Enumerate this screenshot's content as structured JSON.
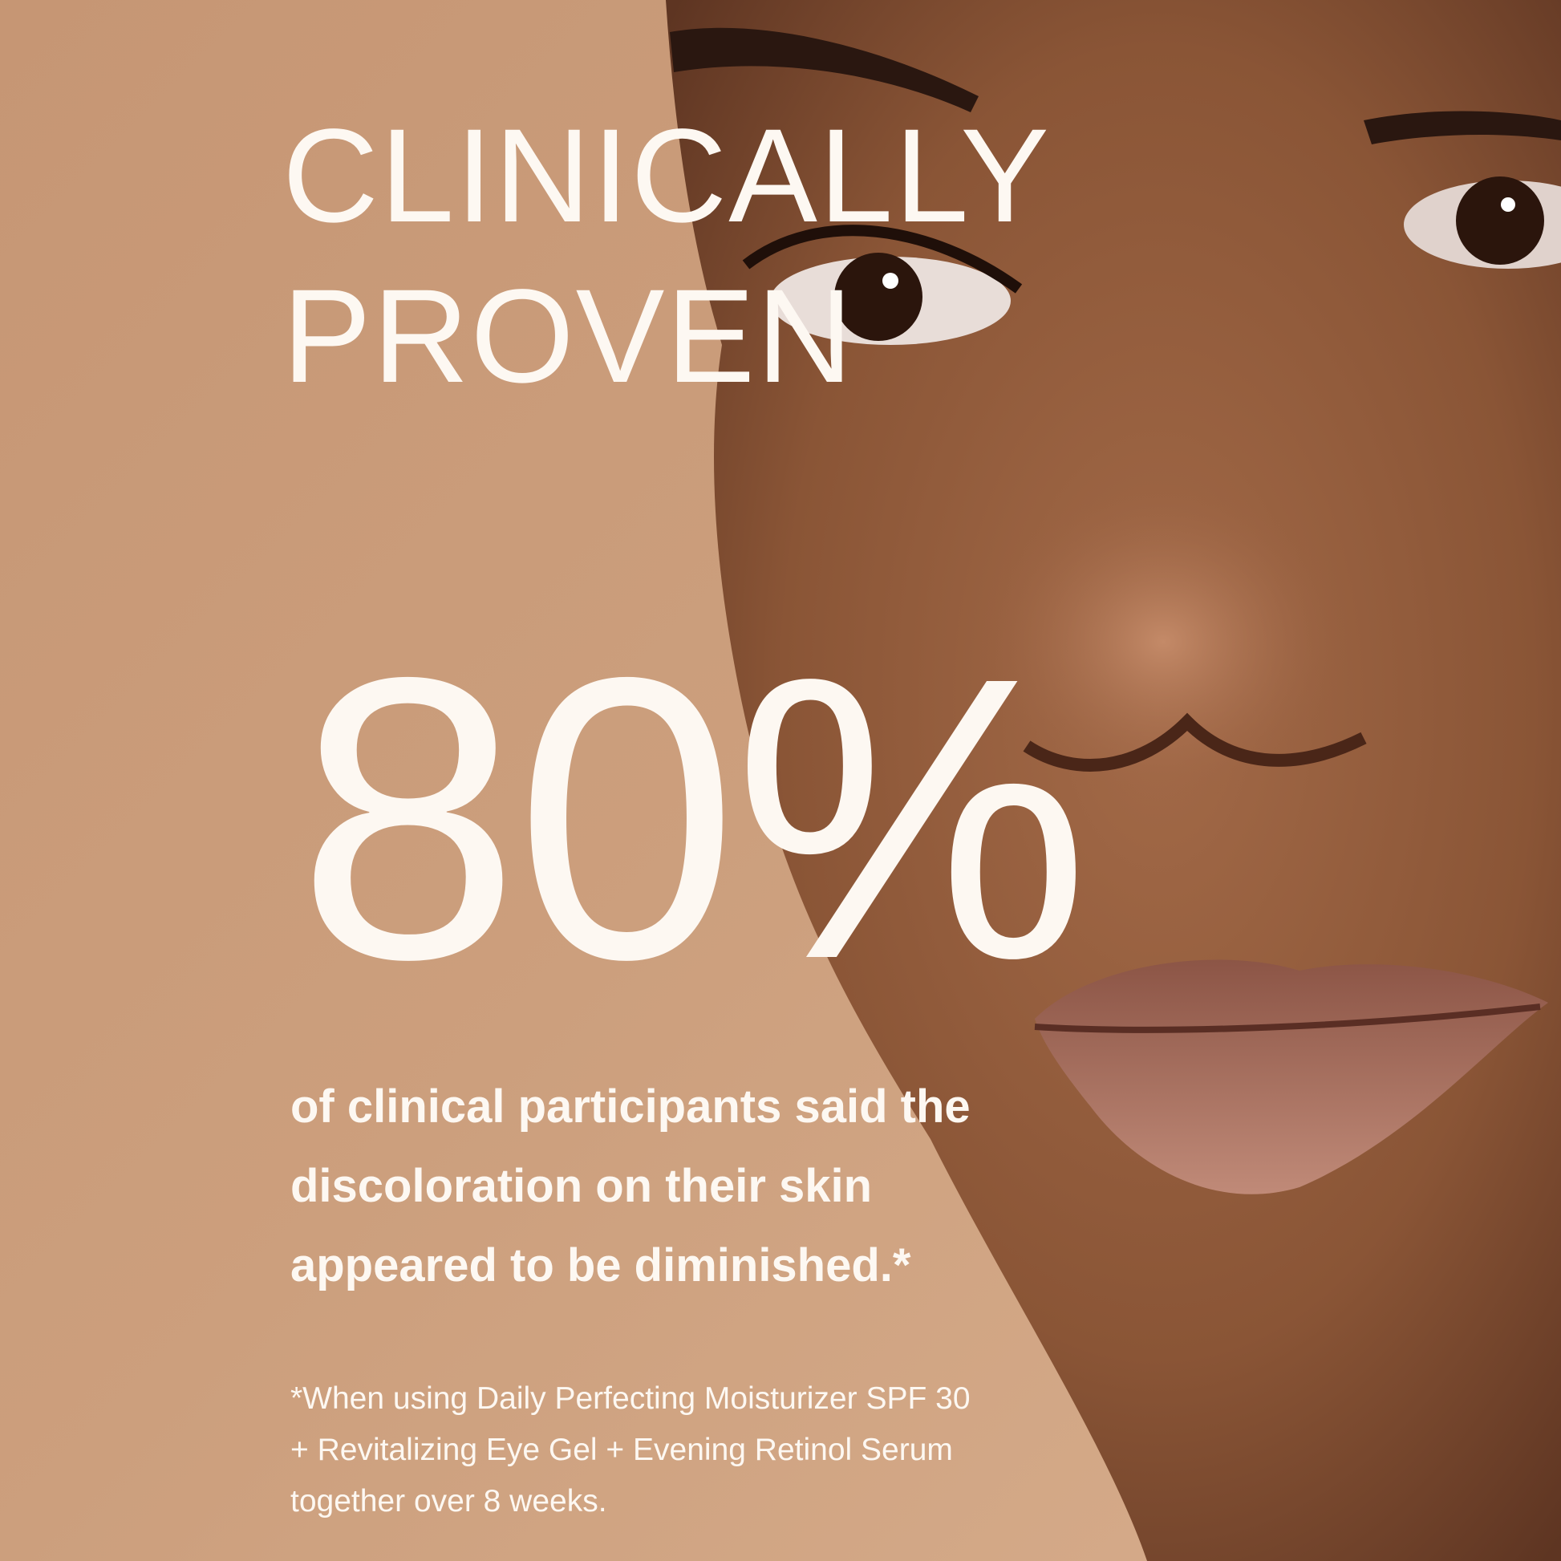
{
  "headline": {
    "line1": "CLINICALLY",
    "line2": "PROVEN"
  },
  "stat": {
    "value": "80%"
  },
  "body": {
    "line1": "of clinical participants said the",
    "line2": "discoloration on their skin",
    "line3": "appeared to be diminished.*"
  },
  "footnote": {
    "line1": "*When using Daily Perfecting Moisturizer SPF 30",
    "line2": "+ Revitalizing Eye Gel + Evening Retinol Serum",
    "line3": "together over 8 weeks."
  },
  "colors": {
    "background": "#c99a78",
    "text": "#fdf8f2",
    "skin": "#8a5536"
  }
}
